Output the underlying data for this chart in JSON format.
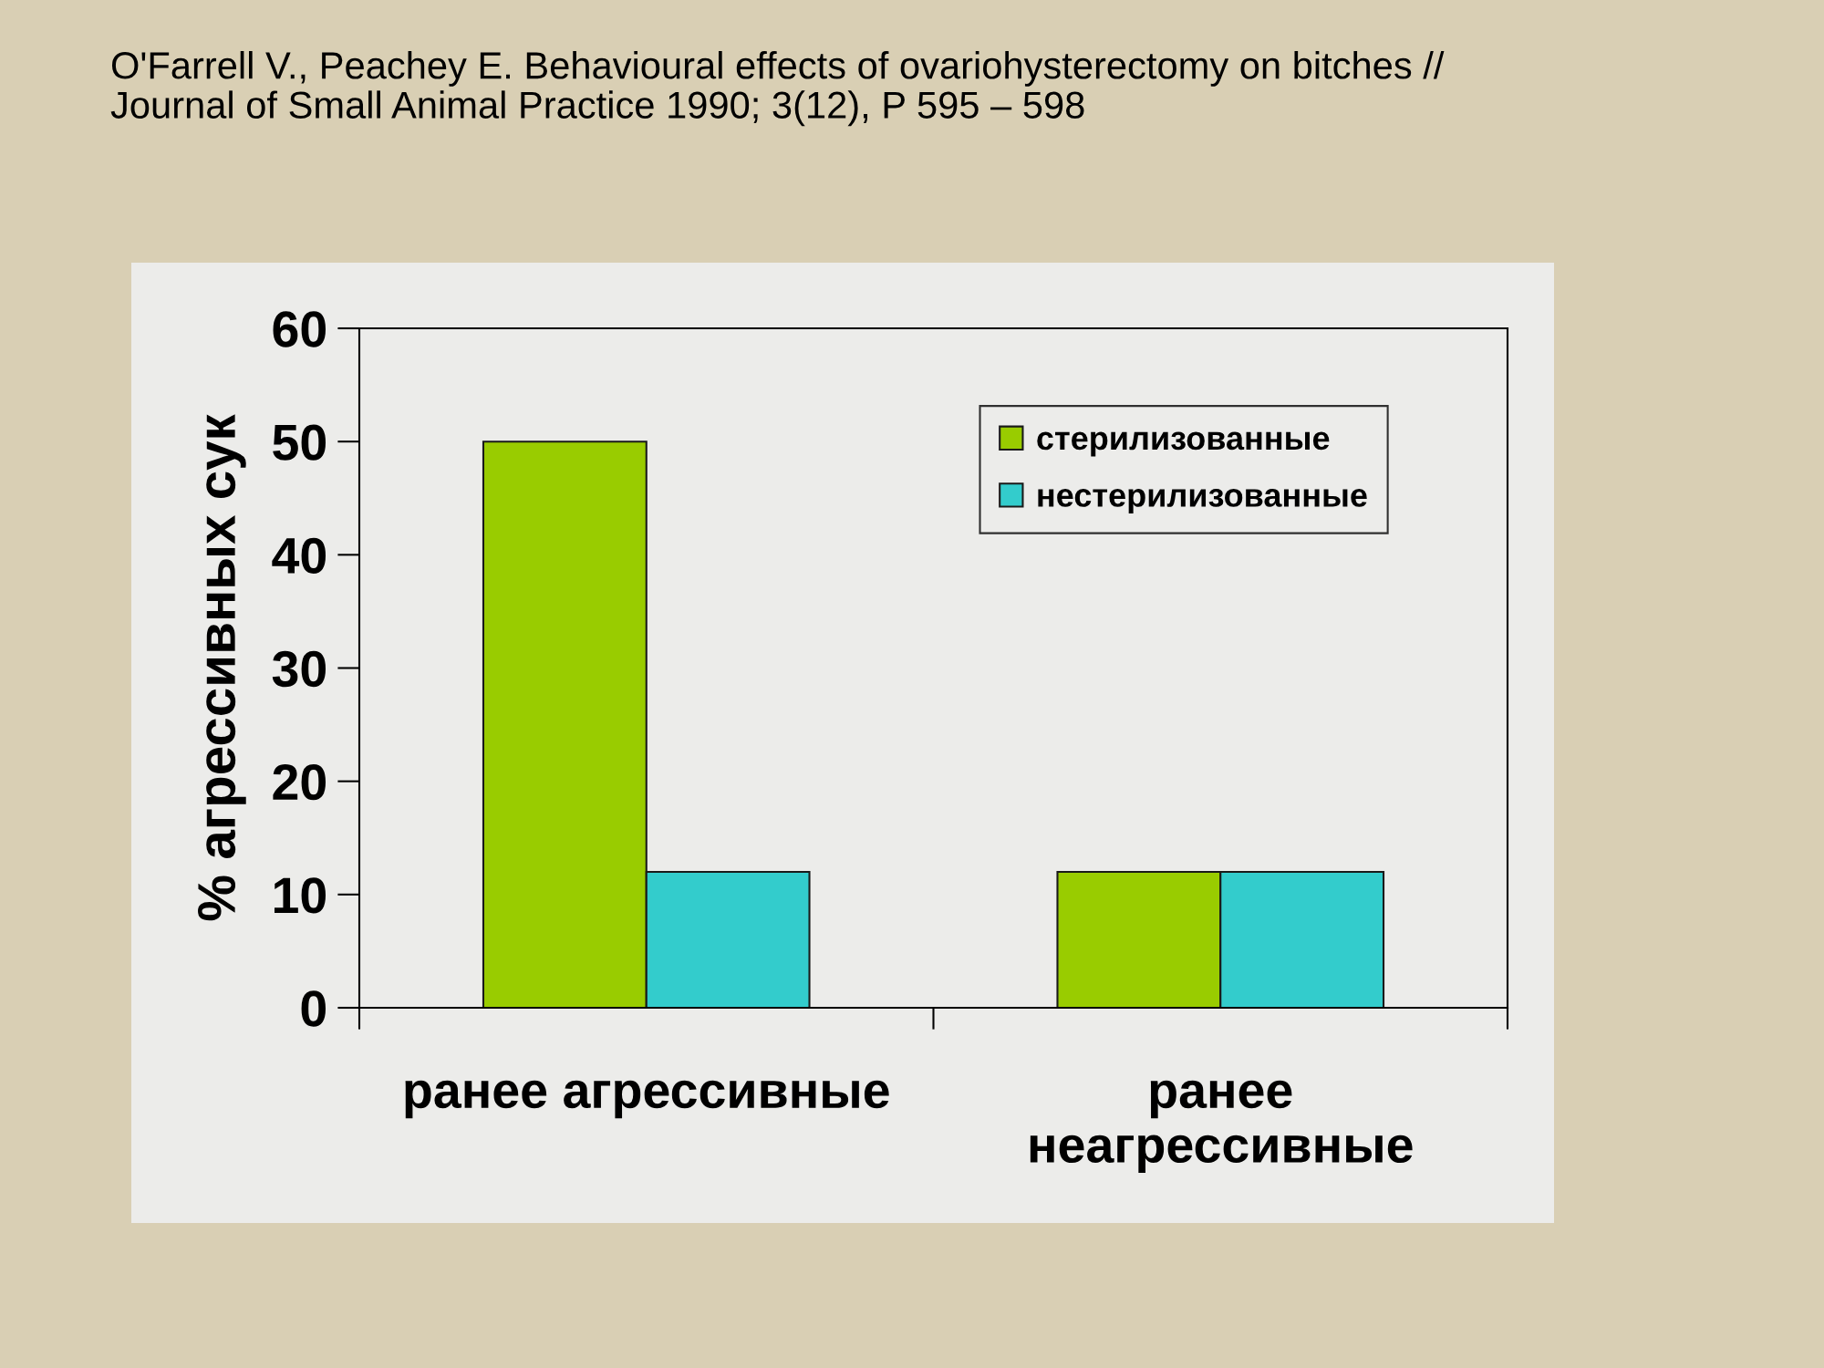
{
  "chart_data": {
    "type": "bar",
    "title": "O'Farrell V., Peachey E. Behavioural effects of ovariohysterectomy on bitches //\nJournal of Small Animal Practice 1990; 3(12), P 595 – 598",
    "ylabel": "% агрессивных сук",
    "categories": [
      "ранее агрессивные",
      "ранее\nнеагрессивные"
    ],
    "series": [
      {
        "name": "стерилизованные",
        "color": "#99cc00",
        "values": [
          50,
          12
        ]
      },
      {
        "name": "нестерилизованные",
        "color": "#33cccc",
        "values": [
          12,
          12
        ]
      }
    ],
    "ylim": [
      0,
      60
    ],
    "yticks": [
      0,
      10,
      20,
      30,
      40,
      50,
      60
    ],
    "legend": "top right",
    "grid": false
  }
}
